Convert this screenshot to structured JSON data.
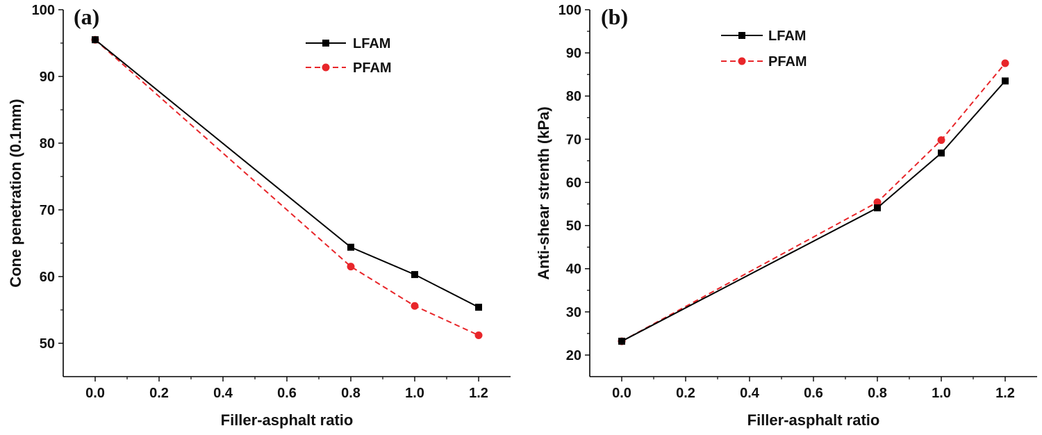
{
  "chart_data": [
    {
      "type": "line",
      "panel_label": "(a)",
      "xlabel": "Filler-asphalt ratio",
      "ylabel": "Cone penetration (0.1mm)",
      "xlim": [
        -0.1,
        1.3
      ],
      "ylim": [
        45,
        100
      ],
      "xticks": [
        0.0,
        0.2,
        0.4,
        0.6,
        0.8,
        1.0,
        1.2
      ],
      "xtick_labels": [
        "0.0",
        "0.2",
        "0.4",
        "0.6",
        "0.8",
        "1.0",
        "1.2"
      ],
      "yticks": [
        50,
        60,
        70,
        80,
        90,
        100
      ],
      "ytick_labels": [
        "50",
        "60",
        "70",
        "80",
        "90",
        "100"
      ],
      "legend_position": "top-right",
      "grid": false,
      "series": [
        {
          "name": "LFAM",
          "color": "#000000",
          "style": "solid",
          "marker": "square",
          "x": [
            0.0,
            0.8,
            1.0,
            1.2
          ],
          "y": [
            95.5,
            64.4,
            60.3,
            55.4
          ]
        },
        {
          "name": "PFAM",
          "color": "#e8262a",
          "style": "dashed",
          "marker": "circle",
          "x": [
            0.0,
            0.8,
            1.0,
            1.2
          ],
          "y": [
            95.5,
            61.5,
            55.6,
            51.2
          ]
        }
      ]
    },
    {
      "type": "line",
      "panel_label": "(b)",
      "xlabel": "Filler-asphalt ratio",
      "ylabel": "Anti-shear strenth (kPa)",
      "xlim": [
        -0.1,
        1.3
      ],
      "ylim": [
        15,
        100
      ],
      "xticks": [
        0.0,
        0.2,
        0.4,
        0.6,
        0.8,
        1.0,
        1.2
      ],
      "xtick_labels": [
        "0.0",
        "0.2",
        "0.4",
        "0.6",
        "0.8",
        "1.0",
        "1.2"
      ],
      "yticks": [
        20,
        30,
        40,
        50,
        60,
        70,
        80,
        90,
        100
      ],
      "ytick_labels": [
        "20",
        "30",
        "40",
        "50",
        "60",
        "70",
        "80",
        "90",
        "100"
      ],
      "legend_position": "top-left",
      "grid": false,
      "series": [
        {
          "name": "LFAM",
          "color": "#000000",
          "style": "solid",
          "marker": "square",
          "x": [
            0.0,
            0.8,
            1.0,
            1.2
          ],
          "y": [
            23.2,
            54.1,
            66.8,
            83.5
          ]
        },
        {
          "name": "PFAM",
          "color": "#e8262a",
          "style": "dashed",
          "marker": "circle",
          "x": [
            0.0,
            0.8,
            1.0,
            1.2
          ],
          "y": [
            23.2,
            55.4,
            69.8,
            87.6
          ]
        }
      ]
    }
  ]
}
